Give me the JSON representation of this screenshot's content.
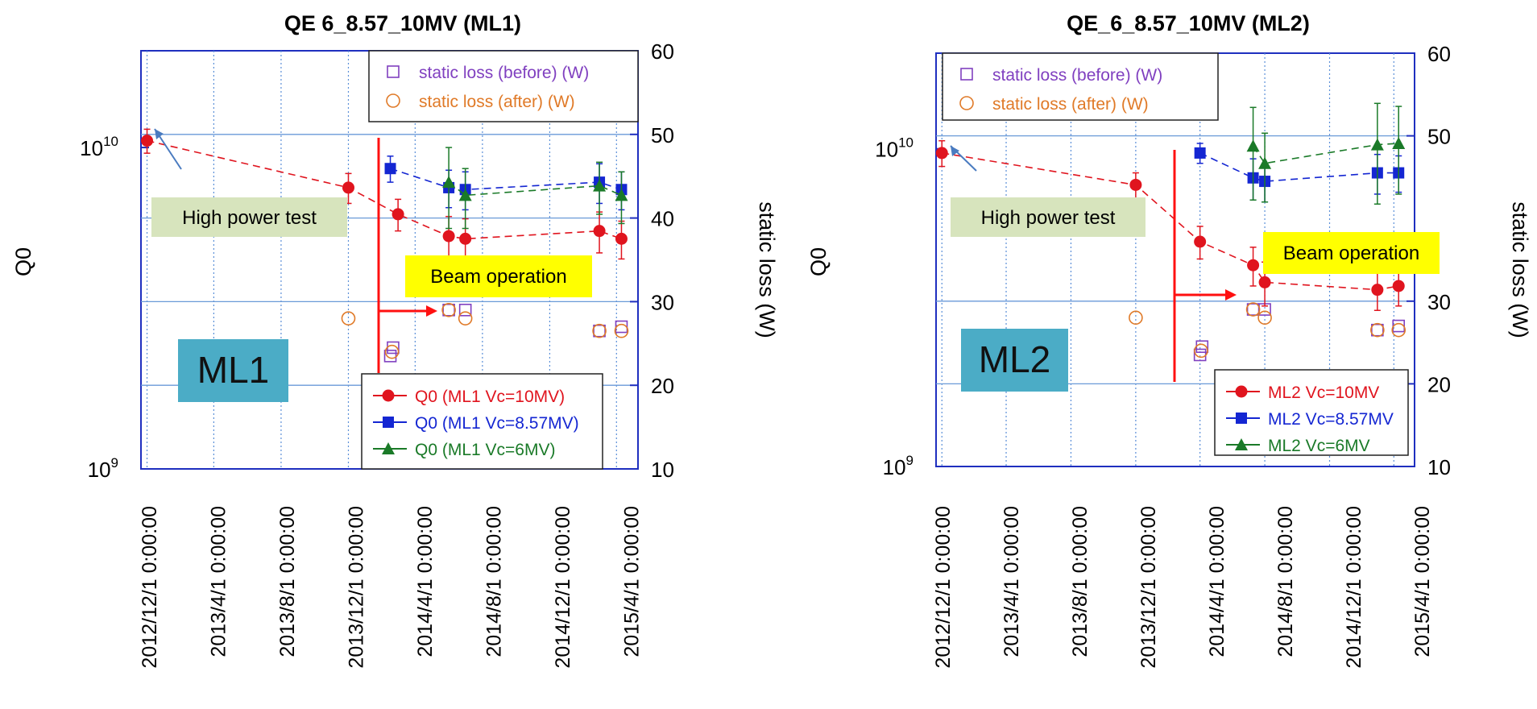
{
  "chart_data": [
    {
      "type": "scatter",
      "title": "QE 6_8.57_10MV (ML1)",
      "ylabel": "Q0",
      "y2label": "static loss (W)",
      "y_scale": "log",
      "ylim": [
        1000000000,
        20000000000
      ],
      "y2lim": [
        10,
        60
      ],
      "y_ticks": [
        "10^10",
        "10^9"
      ],
      "y2_ticks": [
        "60",
        "50",
        "40",
        "30",
        "20",
        "10"
      ],
      "x_ticks": [
        "2012/12/1 0:00:00",
        "2013/4/1 0:00:00",
        "2013/8/1 0:00:00",
        "2013/12/1 0:00:00",
        "2014/4/1 0:00:00",
        "2014/8/1 0:00:00",
        "2014/12/1 0:00:00",
        "2015/4/1 0:00:00"
      ],
      "xlim": [
        "2012/11/20",
        "2015/5/10"
      ],
      "grid": true,
      "series": [
        {
          "name": "static loss (before) (W)",
          "axis": "right",
          "marker": "open-square",
          "color": "#8040c0",
          "x": [
            "2014/2/15",
            "2014/2/20",
            "2014/6/1",
            "2014/7/1",
            "2015/3/1",
            "2015/4/10"
          ],
          "y": [
            23.5,
            24.5,
            29,
            29,
            26.5,
            27
          ]
        },
        {
          "name": "static loss (after) (W)",
          "axis": "right",
          "marker": "open-circle",
          "color": "#e07a28",
          "x": [
            "2013/12/1",
            "2014/2/18",
            "2014/6/1",
            "2014/7/1",
            "2015/3/1",
            "2015/4/10"
          ],
          "y": [
            28,
            24,
            29,
            28,
            26.5,
            26.5
          ]
        },
        {
          "name": "Q0 (ML1 Vc=10MV)",
          "axis": "left",
          "marker": "filled-circle",
          "color": "#e0141e",
          "x": [
            "2012/12/1",
            "2013/12/1",
            "2014/3/1",
            "2014/6/1",
            "2014/7/1",
            "2015/3/1",
            "2015/4/10"
          ],
          "y": [
            10500000000,
            7500000000,
            6200000000,
            5300000000,
            5200000000,
            5500000000,
            5200000000
          ],
          "err": [
            900000000,
            800000000,
            700000000,
            800000000,
            800000000,
            800000000,
            700000000
          ]
        },
        {
          "name": "Q0 (ML1 Vc=8.57MV)",
          "axis": "left",
          "marker": "filled-square",
          "color": "#1426d2",
          "x": [
            "2014/2/15",
            "2014/6/1",
            "2014/7/1",
            "2015/3/1",
            "2015/4/10"
          ],
          "y": [
            8600000000,
            7500000000,
            7400000000,
            7800000000,
            7400000000
          ],
          "err": [
            800000000,
            1000000000,
            1000000000,
            1100000000,
            1000000000
          ]
        },
        {
          "name": "Q0 (ML1 Vc=6MV)",
          "axis": "left",
          "marker": "filled-triangle",
          "color": "#1a7a28",
          "x": [
            "2014/6/1",
            "2014/7/1",
            "2015/3/1",
            "2015/4/10"
          ],
          "y": [
            7800000000,
            7100000000,
            7600000000,
            7100000000
          ],
          "err": [
            2200000000,
            1500000000,
            1400000000,
            1300000000
          ]
        }
      ],
      "annotations": {
        "high_power_test": "High power test",
        "beam_operation": "Beam operation",
        "module": "ML1"
      }
    },
    {
      "type": "scatter",
      "title": "QE_6_8.57_10MV (ML2)",
      "ylabel": "Q0",
      "y2label": "static loss (W)",
      "y_scale": "log",
      "ylim": [
        1000000000,
        20000000000
      ],
      "y2lim": [
        10,
        60
      ],
      "y_ticks": [
        "10^10",
        "10^9"
      ],
      "y2_ticks": [
        "60",
        "50",
        "30",
        "20",
        "10"
      ],
      "x_ticks": [
        "2012/12/1 0:00:00",
        "2013/4/1 0:00:00",
        "2013/8/1 0:00:00",
        "2013/12/1 0:00:00",
        "2014/4/1 0:00:00",
        "2014/8/1 0:00:00",
        "2014/12/1 0:00:00",
        "2015/4/1 0:00:00"
      ],
      "xlim": [
        "2012/11/20",
        "2015/5/10"
      ],
      "grid": true,
      "series": [
        {
          "name": "static loss (before) (W)",
          "axis": "right",
          "marker": "open-square",
          "color": "#8040c0",
          "x": [
            "2014/4/1",
            "2014/4/5",
            "2014/7/10",
            "2014/8/1",
            "2015/3/1",
            "2015/4/10"
          ],
          "y": [
            23.5,
            24.5,
            29,
            29,
            26.5,
            27
          ]
        },
        {
          "name": "static loss (after) (W)",
          "axis": "right",
          "marker": "open-circle",
          "color": "#e07a28",
          "x": [
            "2013/12/1",
            "2014/4/3",
            "2014/7/10",
            "2014/8/1",
            "2015/3/1",
            "2015/4/10"
          ],
          "y": [
            28,
            24,
            29,
            28,
            26.5,
            26.5
          ]
        },
        {
          "name": "ML2 Vc=10MV",
          "axis": "left",
          "marker": "filled-circle",
          "color": "#e0141e",
          "x": [
            "2012/12/1",
            "2013/12/1",
            "2014/4/1",
            "2014/7/10",
            "2014/8/1",
            "2015/3/1",
            "2015/4/10"
          ],
          "y": [
            9700000000,
            7700000000,
            5100000000,
            4300000000,
            3800000000,
            3600000000,
            3700000000
          ],
          "err": [
            900000000,
            700000000,
            600000000,
            600000000,
            600000000,
            500000000,
            500000000
          ]
        },
        {
          "name": "ML2 Vc=8.57MV",
          "axis": "left",
          "marker": "filled-square",
          "color": "#1426d2",
          "x": [
            "2014/4/1",
            "2014/7/10",
            "2014/8/1",
            "2015/3/1",
            "2015/4/10"
          ],
          "y": [
            9700000000,
            8100000000,
            7900000000,
            8400000000,
            8400000000
          ],
          "err": [
            700000000,
            1200000000,
            1100000000,
            1200000000,
            1100000000
          ]
        },
        {
          "name": "ML2 Vc=6MV",
          "axis": "left",
          "marker": "filled-triangle",
          "color": "#1a7a28",
          "x": [
            "2014/7/10",
            "2014/8/1",
            "2015/3/1",
            "2015/4/10"
          ],
          "y": [
            10200000000,
            9000000000,
            10300000000,
            10400000000
          ],
          "err": [
            3300000000,
            2200000000,
            3600000000,
            3200000000
          ]
        }
      ],
      "annotations": {
        "high_power_test": "High power test",
        "beam_operation": "Beam operation",
        "module": "ML2"
      }
    }
  ]
}
